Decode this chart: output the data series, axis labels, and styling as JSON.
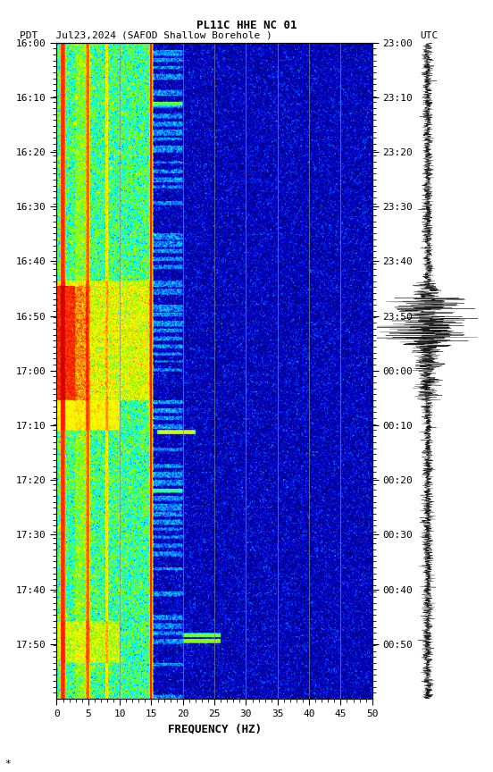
{
  "title_line1": "PL11C HHE NC 01",
  "title_line2_left": "PDT   Jul23,2024",
  "title_line2_center": "(SAFOD Shallow Borehole )",
  "title_line2_right": "UTC",
  "xlabel": "FREQUENCY (HZ)",
  "freq_min": 0,
  "freq_max": 50,
  "freq_ticks": [
    0,
    5,
    10,
    15,
    20,
    25,
    30,
    35,
    40,
    45,
    50
  ],
  "time_labels_left": [
    "16:00",
    "16:10",
    "16:20",
    "16:30",
    "16:40",
    "16:50",
    "17:00",
    "17:10",
    "17:20",
    "17:30",
    "17:40",
    "17:50"
  ],
  "time_labels_right": [
    "23:00",
    "23:10",
    "23:20",
    "23:30",
    "23:40",
    "23:50",
    "00:00",
    "00:10",
    "00:20",
    "00:30",
    "00:40",
    "00:50"
  ],
  "n_time_steps": 660,
  "n_freq_steps": 500,
  "grid_freqs": [
    5,
    10,
    15,
    20,
    25,
    30,
    35,
    40,
    45
  ],
  "red_vline_freq": 15.0,
  "annotation": "*"
}
